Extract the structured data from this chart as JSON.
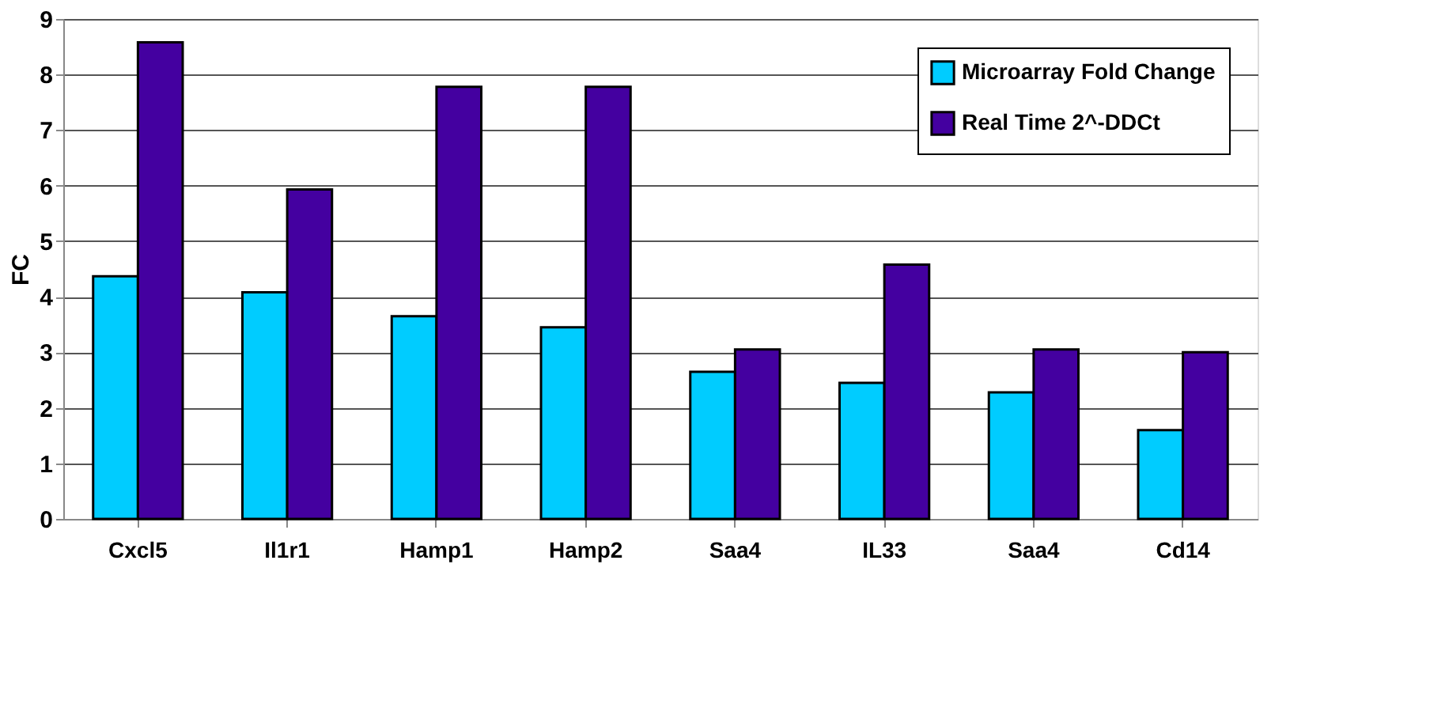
{
  "chart_data": {
    "type": "bar",
    "ylabel": "FC",
    "categories": [
      "Cxcl5",
      "Il1r1",
      "Hamp1",
      "Hamp2",
      "Saa4",
      "IL33",
      "Saa4",
      "Cd14"
    ],
    "series": [
      {
        "name": "Microarray Fold Change",
        "color": "#00ccff",
        "values": [
          4.37,
          4.08,
          3.65,
          3.45,
          2.65,
          2.45,
          2.28,
          1.6
        ]
      },
      {
        "name": "Real Time 2^-DDCt",
        "color": "#4400a0",
        "values": [
          8.58,
          5.93,
          7.78,
          7.78,
          3.05,
          4.58,
          3.05,
          3.0
        ]
      }
    ],
    "ylim": [
      0,
      9
    ],
    "yticks": [
      0,
      1,
      2,
      3,
      4,
      5,
      6,
      7,
      8,
      9
    ],
    "grid": "y",
    "legend": "top right"
  }
}
